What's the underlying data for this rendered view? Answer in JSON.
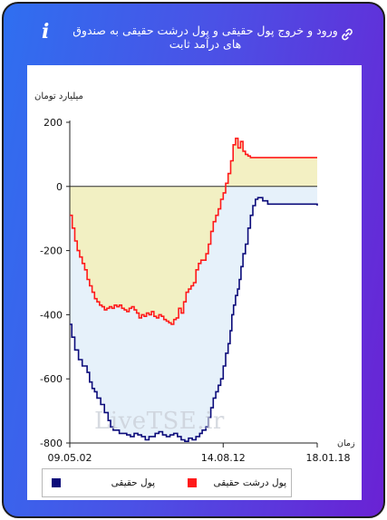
{
  "header": {
    "title": "ورود و خروج پول حقیقی و پول درشت حقیقی به صندوق های درآمد ثابت",
    "info_icon_glyph": "i",
    "icons": [
      "link-icon",
      "info-icon"
    ]
  },
  "colors": {
    "frame_gradient_start": "#2f6ff0",
    "frame_gradient_end": "#6a22d4",
    "real_money": "#0b0b7a",
    "big_real_money": "#ff1a1a",
    "area_negative_fill": "#f2efc0",
    "area_blue_fill": "#e6f1fa",
    "area_positive_fill": "#fdf6c6"
  },
  "watermark": "LiveTSE.ir",
  "chart_data": {
    "type": "line",
    "ylabel": "میلیارد تومان",
    "xlabel": "زمان",
    "ylim": [
      -800,
      200
    ],
    "yticks": [
      200,
      0,
      -200,
      -400,
      -600,
      -800
    ],
    "xticks": [
      "09.05.02",
      "14.08.12",
      "18.01.18"
    ],
    "grid": false,
    "legend_position": "bottom",
    "x_unit": "period index 0–100",
    "series": [
      {
        "name": "پول حقیقی",
        "color": "#0b0b7a",
        "x": [
          0,
          0.8,
          2,
          3.5,
          5,
          7,
          8,
          9,
          10,
          11,
          12.5,
          14,
          15.5,
          16.5,
          17.5,
          18.5,
          20,
          21.5,
          23,
          24.5,
          26,
          27.5,
          29,
          30.5,
          32,
          33,
          34.5,
          36,
          37.5,
          39,
          40.5,
          42,
          43.5,
          45,
          46.5,
          48,
          49.5,
          51,
          52.5,
          53.5,
          55,
          56,
          57,
          58,
          59,
          60,
          61,
          62,
          63,
          64,
          64.8,
          65.5,
          66.2,
          67,
          67.8,
          68.5,
          69.2,
          70,
          71,
          72,
          73,
          74,
          75,
          76,
          78,
          80,
          100
        ],
        "y": [
          -430,
          -470,
          -510,
          -540,
          -560,
          -580,
          -610,
          -630,
          -640,
          -660,
          -680,
          -705,
          -730,
          -750,
          -760,
          -760,
          -770,
          -770,
          -775,
          -780,
          -770,
          -775,
          -780,
          -790,
          -780,
          -780,
          -770,
          -765,
          -775,
          -780,
          -775,
          -770,
          -780,
          -790,
          -795,
          -785,
          -790,
          -780,
          -770,
          -760,
          -750,
          -720,
          -690,
          -660,
          -640,
          -620,
          -600,
          -560,
          -520,
          -490,
          -450,
          -400,
          -370,
          -340,
          -320,
          -290,
          -250,
          -210,
          -180,
          -130,
          -90,
          -60,
          -40,
          -35,
          -45,
          -55,
          -60
        ]
      },
      {
        "name": "پول درشت حقیقی",
        "color": "#ff1a1a",
        "x": [
          0,
          1,
          2,
          3,
          4,
          5,
          6,
          7,
          8,
          9,
          10,
          11,
          12,
          13,
          14,
          15,
          16,
          17,
          18,
          19,
          20,
          21,
          22,
          23,
          24,
          25,
          26,
          27,
          28,
          29,
          30,
          31,
          32,
          33,
          34,
          35,
          36,
          37,
          38,
          39,
          40,
          41,
          42,
          43,
          44,
          45,
          46,
          47,
          48,
          49,
          50,
          51,
          52,
          53,
          54,
          55,
          56,
          57,
          58,
          59,
          60,
          61,
          62,
          63,
          64,
          65,
          66,
          67,
          68,
          69,
          70,
          71,
          72,
          73,
          74,
          75,
          76,
          80,
          100
        ],
        "y": [
          -90,
          -130,
          -170,
          -200,
          -220,
          -240,
          -260,
          -290,
          -310,
          -330,
          -350,
          -360,
          -370,
          -375,
          -385,
          -380,
          -375,
          -380,
          -370,
          -375,
          -370,
          -380,
          -385,
          -390,
          -380,
          -375,
          -385,
          -395,
          -410,
          -400,
          -405,
          -395,
          -400,
          -390,
          -405,
          -410,
          -400,
          -405,
          -415,
          -420,
          -425,
          -430,
          -415,
          -410,
          -380,
          -395,
          -360,
          -330,
          -320,
          -310,
          -300,
          -260,
          -240,
          -230,
          -230,
          -210,
          -180,
          -140,
          -110,
          -90,
          -70,
          -40,
          -20,
          10,
          40,
          80,
          130,
          150,
          120,
          140,
          110,
          100,
          95,
          90,
          90,
          90,
          90,
          90,
          90
        ]
      }
    ]
  },
  "legend": {
    "items": [
      {
        "label": "پول حقیقی",
        "color": "#0b0b7a"
      },
      {
        "label": "پول درشت حقیقی",
        "color": "#ff1a1a"
      }
    ]
  }
}
